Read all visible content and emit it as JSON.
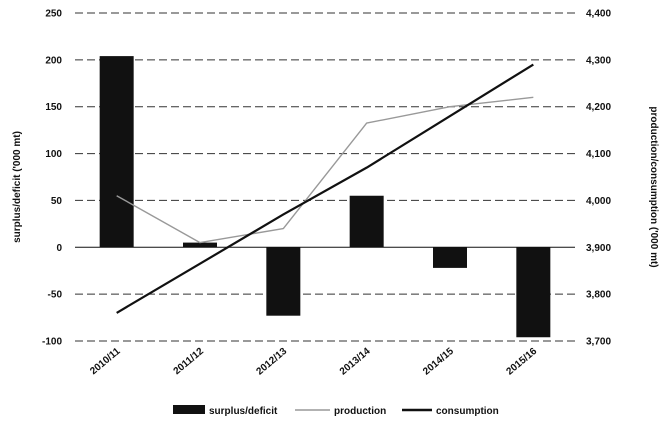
{
  "chart_data": {
    "type": "bar",
    "categories": [
      "2010/11",
      "2011/12",
      "2012/13",
      "2013/14",
      "2014/15",
      "2015/16"
    ],
    "series": [
      {
        "name": "surplus/deficit",
        "type": "bar",
        "axis": "left",
        "color": "#111111",
        "values": [
          204,
          5,
          -73,
          55,
          -22,
          -96
        ]
      },
      {
        "name": "production",
        "type": "line",
        "axis": "right",
        "color": "#999999",
        "values": [
          4010,
          3910,
          3940,
          4165,
          4200,
          4220
        ]
      },
      {
        "name": "consumption",
        "type": "line",
        "axis": "right",
        "color": "#111111",
        "values": [
          3760,
          3865,
          3970,
          4070,
          4180,
          4290
        ]
      }
    ],
    "left_axis": {
      "label": "surplus/deficit ('000 mt)",
      "ylim": [
        -100,
        250
      ],
      "ticks": [
        "-100",
        "-50",
        "0",
        "50",
        "100",
        "150",
        "200",
        "250"
      ]
    },
    "right_axis": {
      "label": "production/consumption ('000 mt)",
      "ylim": [
        3700,
        4400
      ],
      "ticks": [
        "3,700",
        "3,800",
        "3,900",
        "4,000",
        "4,100",
        "4,200",
        "4,300",
        "4,400"
      ]
    },
    "grid": "horizontal-dashed",
    "legend_position": "bottom"
  }
}
